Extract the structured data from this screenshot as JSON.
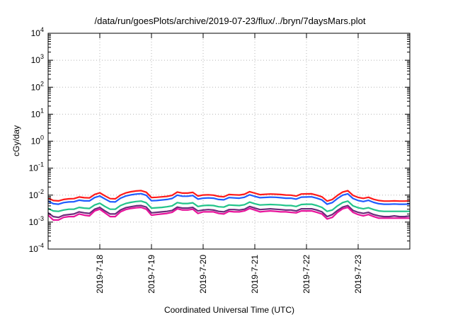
{
  "chart_data": {
    "type": "line",
    "title": "/data/run/goesPlots/archive/2019-07-23/flux/../bryn/7daysMars.plot",
    "xlabel": "Coordinated Universal Time (UTC)",
    "ylabel": "cGy/day",
    "yscale": "log",
    "ylim": [
      0.0001,
      10000
    ],
    "xlim": [
      0,
      7
    ],
    "grid": true,
    "y_ticks": [
      {
        "value": 0.0001,
        "base": "10",
        "exp": "-4"
      },
      {
        "value": 0.001,
        "base": "10",
        "exp": "-3"
      },
      {
        "value": 0.01,
        "base": "10",
        "exp": "-2"
      },
      {
        "value": 0.1,
        "base": "10",
        "exp": "-1"
      },
      {
        "value": 1,
        "base": "10",
        "exp": "0"
      },
      {
        "value": 10,
        "base": "10",
        "exp": "1"
      },
      {
        "value": 100,
        "base": "10",
        "exp": "2"
      },
      {
        "value": 1000,
        "base": "10",
        "exp": "3"
      },
      {
        "value": 10000,
        "base": "10",
        "exp": "4"
      }
    ],
    "x_ticks": [
      {
        "value": 1,
        "label": "2019-7-18"
      },
      {
        "value": 2,
        "label": "2019-7-19"
      },
      {
        "value": 3,
        "label": "2019-7-20"
      },
      {
        "value": 4,
        "label": "2019-7-21"
      },
      {
        "value": 5,
        "label": "2019-7-22"
      },
      {
        "value": 6,
        "label": "2019-7-23"
      }
    ],
    "x": [
      0.0,
      0.1,
      0.2,
      0.3,
      0.4,
      0.5,
      0.6,
      0.7,
      0.8,
      0.9,
      1.0,
      1.1,
      1.2,
      1.3,
      1.4,
      1.5,
      1.6,
      1.7,
      1.8,
      1.9,
      2.0,
      2.1,
      2.2,
      2.3,
      2.4,
      2.5,
      2.6,
      2.7,
      2.8,
      2.9,
      3.0,
      3.1,
      3.2,
      3.3,
      3.4,
      3.5,
      3.6,
      3.7,
      3.8,
      3.9,
      4.0,
      4.1,
      4.2,
      4.3,
      4.4,
      4.5,
      4.6,
      4.7,
      4.8,
      4.9,
      5.0,
      5.1,
      5.2,
      5.3,
      5.4,
      5.5,
      5.6,
      5.7,
      5.8,
      5.9,
      6.0,
      6.1,
      6.2,
      6.3,
      6.4,
      6.5,
      6.6,
      6.7,
      6.8,
      6.9,
      7.0
    ],
    "series": [
      {
        "color": "#ff1a1a",
        "values": [
          0.0078,
          0.0063,
          0.0061,
          0.0069,
          0.0073,
          0.0074,
          0.0085,
          0.008,
          0.0079,
          0.0106,
          0.0122,
          0.0094,
          0.0074,
          0.0073,
          0.01,
          0.012,
          0.0133,
          0.0142,
          0.0147,
          0.0128,
          0.0081,
          0.0083,
          0.0086,
          0.009,
          0.0098,
          0.013,
          0.0119,
          0.0119,
          0.0126,
          0.0093,
          0.0101,
          0.0103,
          0.01,
          0.009,
          0.0087,
          0.0105,
          0.0103,
          0.0101,
          0.0108,
          0.0134,
          0.0118,
          0.0104,
          0.0107,
          0.011,
          0.0108,
          0.0105,
          0.0101,
          0.01,
          0.0092,
          0.011,
          0.0111,
          0.0112,
          0.01,
          0.0086,
          0.006,
          0.0069,
          0.0098,
          0.013,
          0.0146,
          0.0098,
          0.0082,
          0.0076,
          0.0083,
          0.007,
          0.0063,
          0.006,
          0.006,
          0.0061,
          0.006,
          0.006,
          0.0061
        ]
      },
      {
        "color": "#1f5cff",
        "values": [
          0.006,
          0.0048,
          0.0046,
          0.0053,
          0.0056,
          0.0057,
          0.0065,
          0.0061,
          0.0061,
          0.0081,
          0.0093,
          0.0072,
          0.0057,
          0.0056,
          0.0077,
          0.0092,
          0.0102,
          0.0109,
          0.0113,
          0.0098,
          0.0062,
          0.0063,
          0.0066,
          0.0069,
          0.0075,
          0.01,
          0.0091,
          0.0091,
          0.0097,
          0.0071,
          0.0077,
          0.0079,
          0.0077,
          0.0069,
          0.0067,
          0.0081,
          0.0079,
          0.0077,
          0.0083,
          0.0103,
          0.009,
          0.008,
          0.0082,
          0.0084,
          0.0083,
          0.008,
          0.0077,
          0.0077,
          0.0071,
          0.0084,
          0.0085,
          0.0086,
          0.0077,
          0.0066,
          0.0046,
          0.0053,
          0.0075,
          0.01,
          0.0112,
          0.0075,
          0.0063,
          0.0058,
          0.0064,
          0.0054,
          0.0048,
          0.0046,
          0.0046,
          0.0047,
          0.0046,
          0.0046,
          0.0047
        ]
      },
      {
        "color": "#22c48a",
        "values": [
          0.0032,
          0.0026,
          0.0025,
          0.0028,
          0.003,
          0.003,
          0.0035,
          0.0033,
          0.0032,
          0.0043,
          0.005,
          0.0038,
          0.003,
          0.003,
          0.0041,
          0.0049,
          0.0054,
          0.0058,
          0.006,
          0.0052,
          0.0033,
          0.0034,
          0.0035,
          0.0037,
          0.004,
          0.0053,
          0.0049,
          0.0049,
          0.0052,
          0.0038,
          0.0041,
          0.0042,
          0.0041,
          0.0037,
          0.0036,
          0.0043,
          0.0042,
          0.0041,
          0.0044,
          0.0055,
          0.0048,
          0.0043,
          0.0044,
          0.0045,
          0.0044,
          0.0043,
          0.0041,
          0.0041,
          0.0038,
          0.0045,
          0.0046,
          0.0046,
          0.0041,
          0.0035,
          0.0025,
          0.0028,
          0.004,
          0.0053,
          0.006,
          0.004,
          0.0034,
          0.0031,
          0.0034,
          0.0029,
          0.0026,
          0.0025,
          0.0025,
          0.0025,
          0.0025,
          0.0025,
          0.0025
        ]
      },
      {
        "color": "#6b2a7a",
        "values": [
          0.0022,
          0.0016,
          0.0015,
          0.0018,
          0.0019,
          0.002,
          0.0024,
          0.0022,
          0.0021,
          0.003,
          0.0035,
          0.0026,
          0.002,
          0.002,
          0.0028,
          0.0034,
          0.0037,
          0.004,
          0.0041,
          0.0036,
          0.0022,
          0.0023,
          0.0024,
          0.0025,
          0.0027,
          0.0036,
          0.0033,
          0.0033,
          0.0035,
          0.0026,
          0.0028,
          0.0029,
          0.0028,
          0.0025,
          0.0024,
          0.0029,
          0.0029,
          0.0028,
          0.003,
          0.0038,
          0.0033,
          0.0029,
          0.003,
          0.0031,
          0.003,
          0.0029,
          0.0028,
          0.0028,
          0.0026,
          0.0031,
          0.0031,
          0.0031,
          0.0028,
          0.0024,
          0.0016,
          0.0019,
          0.0027,
          0.0036,
          0.0041,
          0.0027,
          0.0023,
          0.0021,
          0.0023,
          0.0019,
          0.0017,
          0.0016,
          0.0016,
          0.0017,
          0.0016,
          0.0016,
          0.0017
        ]
      },
      {
        "color": "#e8139b",
        "values": [
          0.0018,
          0.0012,
          0.0012,
          0.0015,
          0.0016,
          0.0016,
          0.002,
          0.0018,
          0.0017,
          0.0026,
          0.003,
          0.0022,
          0.0016,
          0.0016,
          0.0024,
          0.0029,
          0.0032,
          0.0034,
          0.0035,
          0.003,
          0.0018,
          0.0019,
          0.002,
          0.0021,
          0.0023,
          0.0031,
          0.0028,
          0.0028,
          0.003,
          0.0021,
          0.0024,
          0.0024,
          0.0024,
          0.0021,
          0.002,
          0.0025,
          0.0024,
          0.0024,
          0.0026,
          0.0032,
          0.0028,
          0.0024,
          0.0025,
          0.0026,
          0.0025,
          0.0024,
          0.0024,
          0.0023,
          0.0022,
          0.0026,
          0.0026,
          0.0026,
          0.0023,
          0.002,
          0.0013,
          0.0015,
          0.0023,
          0.0031,
          0.0035,
          0.0023,
          0.0019,
          0.0017,
          0.0019,
          0.0016,
          0.0014,
          0.0014,
          0.0014,
          0.0014,
          0.0014,
          0.0014,
          0.0014
        ]
      }
    ]
  }
}
